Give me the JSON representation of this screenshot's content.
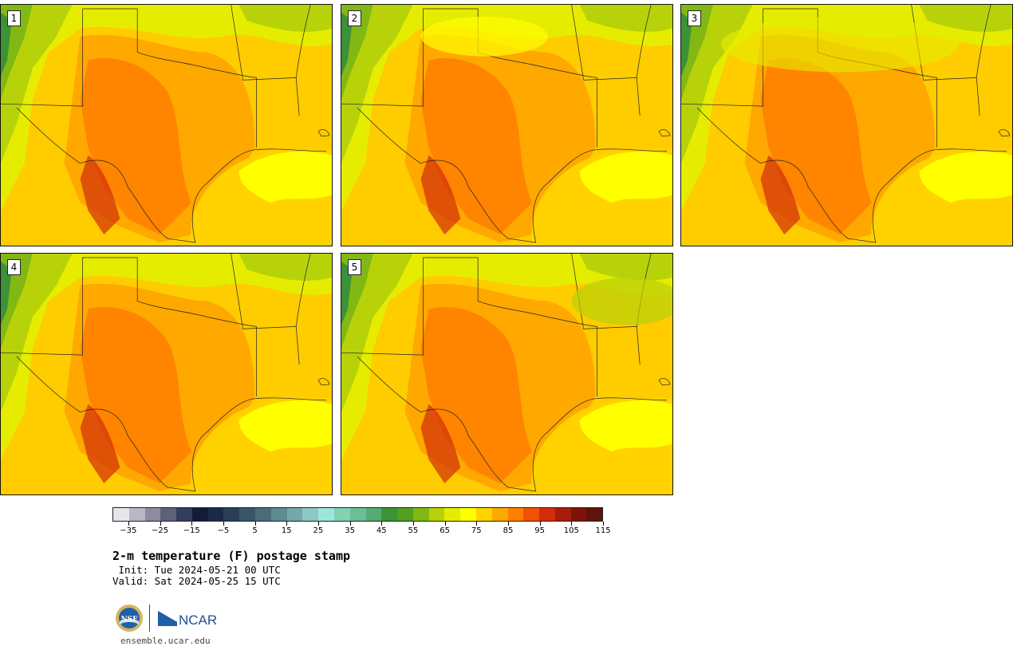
{
  "panels": [
    {
      "label": "1"
    },
    {
      "label": "2"
    },
    {
      "label": "3"
    },
    {
      "label": "4"
    },
    {
      "label": "5"
    }
  ],
  "colorbar": {
    "colors": [
      "#e6e6ea",
      "#b8b8c4",
      "#8c8c9e",
      "#5e6278",
      "#333d5e",
      "#121c38",
      "#1a2a48",
      "#2a3e5a",
      "#3a5468",
      "#4a6c78",
      "#5e8a92",
      "#74a8aa",
      "#8cc8c4",
      "#9ee6da",
      "#82d2b2",
      "#6cbe96",
      "#56aa74",
      "#3c9236",
      "#52a022",
      "#82b814",
      "#b8d20a",
      "#e6ec00",
      "#ffff00",
      "#ffd200",
      "#ffa800",
      "#ff7e00",
      "#f05008",
      "#d22c0a",
      "#a81c0a",
      "#7e1408",
      "#5e140a"
    ],
    "ticks": [
      "−35",
      "−25",
      "−15",
      "−5",
      "5",
      "15",
      "25",
      "35",
      "45",
      "55",
      "65",
      "75",
      "85",
      "95",
      "105",
      "115"
    ],
    "min": -40,
    "max": 115,
    "tick_start": -35,
    "tick_step": 10
  },
  "title": "2-m temperature (F) postage stamp",
  "init": " Init: Tue 2024-05-21 00 UTC",
  "valid": "Valid: Sat 2024-05-25 15 UTC",
  "logo": {
    "nsf": "NSF",
    "ncar": "NCAR"
  },
  "url": "ensemble.ucar.edu"
}
